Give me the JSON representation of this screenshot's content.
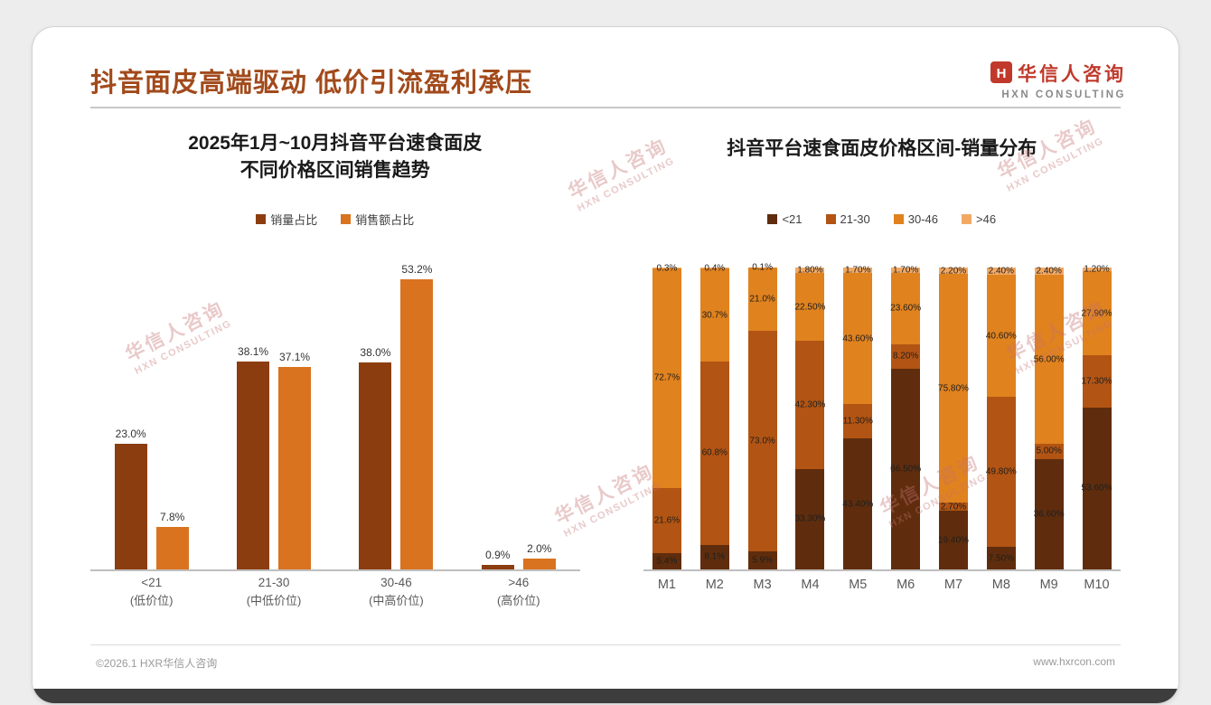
{
  "slide": {
    "title": "抖音面皮高端驱动 低价引流盈利承压",
    "logo": {
      "cn": "华信人咨询",
      "en": "HXN CONSULTING"
    },
    "watermark": {
      "line1": "华信人咨询",
      "line2": "HXN CONSULTING"
    },
    "footer": {
      "left": "©2026.1 HXR华信人咨询",
      "right": "www.hxrcon.com"
    }
  },
  "colors": {
    "title_brown": "#A24A1B",
    "logo_red": "#C0392B",
    "series_volume": "#8C3D10",
    "series_revenue": "#D9731F",
    "band_lt21": "#5F2D0D",
    "band_21_30": "#B25413",
    "band_30_46": "#E0821E",
    "band_gt46": "#F2A964"
  },
  "chart_data": [
    {
      "type": "bar",
      "title_lines": [
        "2025年1月~10月抖音平台速食面皮",
        "不同价格区间销售趋势"
      ],
      "categories": [
        "<21",
        "21-30",
        "30-46",
        ">46"
      ],
      "category_sublabels": [
        "(低价位)",
        "(中低价位)",
        "(中高价位)",
        "(高价位)"
      ],
      "ylim": [
        0,
        60
      ],
      "grid": false,
      "legend_position": "top",
      "series": [
        {
          "name": "销量占比",
          "color": "#8C3D10",
          "values": [
            23.0,
            38.1,
            38.0,
            0.9
          ],
          "labels": [
            "23.0%",
            "38.1%",
            "38.0%",
            "0.9%"
          ]
        },
        {
          "name": "销售额占比",
          "color": "#D9731F",
          "values": [
            7.8,
            37.1,
            53.2,
            2.0
          ],
          "labels": [
            "7.8%",
            "37.1%",
            "53.2%",
            "2.0%"
          ]
        }
      ]
    },
    {
      "type": "stacked-bar-100",
      "title": "抖音平台速食面皮价格区间-销量分布",
      "categories": [
        "M1",
        "M2",
        "M3",
        "M4",
        "M5",
        "M6",
        "M7",
        "M8",
        "M9",
        "M10"
      ],
      "ylim": [
        0,
        100
      ],
      "grid": false,
      "legend_position": "top",
      "series": [
        {
          "name": "<21",
          "color": "#5F2D0D",
          "values": [
            5.4,
            8.1,
            5.9,
            33.3,
            43.4,
            66.5,
            19.4,
            7.5,
            36.6,
            53.6
          ],
          "labels": [
            "5.4%",
            "8.1%",
            "5.9%",
            "33.30%",
            "43.40%",
            "66.50%",
            "19.40%",
            "7.50%",
            "36.60%",
            "53.60%"
          ]
        },
        {
          "name": "21-30",
          "color": "#B25413",
          "values": [
            21.6,
            60.8,
            73.0,
            42.3,
            11.3,
            8.2,
            2.7,
            49.8,
            5.0,
            17.3
          ],
          "labels": [
            "21.6%",
            "60.8%",
            "73.0%",
            "42.30%",
            "11.30%",
            "8.20%",
            "2.70%",
            "49.80%",
            "5.00%",
            "17.30%"
          ]
        },
        {
          "name": "30-46",
          "color": "#E0821E",
          "values": [
            72.7,
            30.7,
            21.0,
            22.5,
            43.6,
            23.6,
            75.8,
            40.6,
            56.0,
            27.9
          ],
          "labels": [
            "72.7%",
            "30.7%",
            "21.0%",
            "22.50%",
            "43.60%",
            "23.60%",
            "75.80%",
            "40.60%",
            "56.00%",
            "27.90%"
          ]
        },
        {
          "name": ">46",
          "color": "#F2A964",
          "values": [
            0.3,
            0.4,
            0.1,
            1.8,
            1.7,
            1.7,
            2.2,
            2.4,
            2.4,
            1.2
          ],
          "labels": [
            "0.3%",
            "0.4%",
            "0.1%",
            "1.80%",
            "1.70%",
            "1.70%",
            "2.20%",
            "2.40%",
            "2.40%",
            "1.20%"
          ]
        }
      ]
    }
  ]
}
